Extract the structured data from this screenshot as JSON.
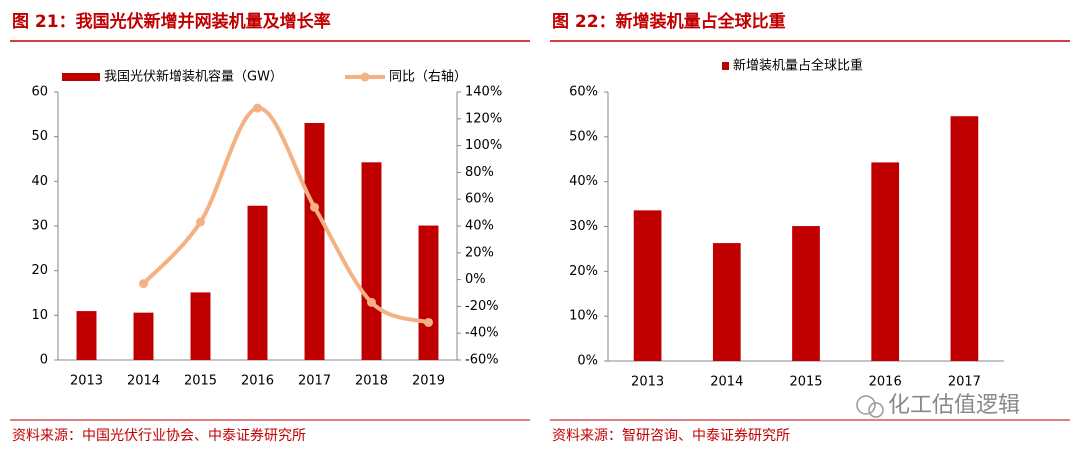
{
  "chart_data": [
    {
      "type": "bar",
      "title": "图 21：我国光伏新增并网装机量及增长率",
      "source": "资料来源：中国光伏行业协会、中泰证券研究所",
      "categories": [
        "2013",
        "2014",
        "2015",
        "2016",
        "2017",
        "2018",
        "2019"
      ],
      "series": [
        {
          "name": "我国光伏新增装机容量（GW）",
          "color": "#c00000",
          "values": [
            10.95,
            10.6,
            15.13,
            34.54,
            53.06,
            44.26,
            30.1
          ]
        },
        {
          "name": "同比（右轴）",
          "color": "#f4b183",
          "type": "line",
          "axis": "y2",
          "values": [
            null,
            -3,
            43,
            128,
            54,
            -17,
            -32
          ]
        }
      ],
      "ylim": [
        0,
        60
      ],
      "yticks": [
        0,
        10,
        20,
        30,
        40,
        50,
        60
      ],
      "y2lim": [
        -60,
        140
      ],
      "y2ticks": [
        {
          "value": -60,
          "label": "-60%"
        },
        {
          "value": -40,
          "label": "-40%"
        },
        {
          "value": -20,
          "label": "-20%"
        },
        {
          "value": 0,
          "label": "0%"
        },
        {
          "value": 20,
          "label": "20%"
        },
        {
          "value": 40,
          "label": "40%"
        },
        {
          "value": 60,
          "label": "60%"
        },
        {
          "value": 80,
          "label": "80%"
        },
        {
          "value": 100,
          "label": "100%"
        },
        {
          "value": 120,
          "label": "120%"
        },
        {
          "value": 140,
          "label": "140%"
        }
      ],
      "legend": "top"
    },
    {
      "type": "bar",
      "title": "图 22：新增装机量占全球比重",
      "source": "资料来源：智研咨询、中泰证券研究所",
      "categories": [
        "2013",
        "2014",
        "2015",
        "2016",
        "2017"
      ],
      "series": [
        {
          "name": "新增装机量占全球比重",
          "color": "#c00000",
          "values": [
            33.6,
            26.3,
            30.1,
            44.3,
            54.6
          ]
        }
      ],
      "ylim": [
        0,
        60
      ],
      "yticks": [
        {
          "value": 0,
          "label": "0%"
        },
        {
          "value": 10,
          "label": "10%"
        },
        {
          "value": 20,
          "label": "20%"
        },
        {
          "value": 30,
          "label": "30%"
        },
        {
          "value": 40,
          "label": "40%"
        },
        {
          "value": 50,
          "label": "50%"
        },
        {
          "value": 60,
          "label": "60%"
        }
      ],
      "legend": "top"
    }
  ],
  "watermark": "化工估值逻辑"
}
